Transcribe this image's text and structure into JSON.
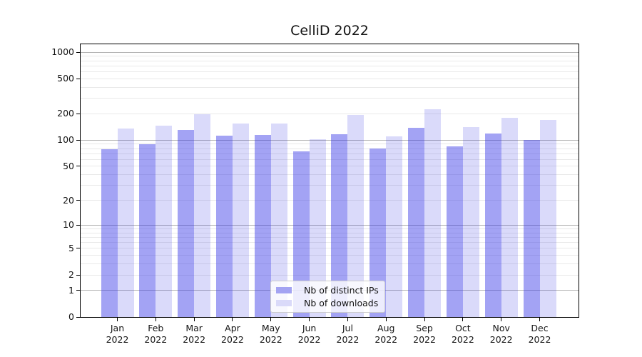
{
  "chart_data": {
    "type": "bar",
    "title": "CelliD 2022",
    "categories": [
      "Jan 2022",
      "Feb 2022",
      "Mar 2022",
      "Apr 2022",
      "May 2022",
      "Jun 2022",
      "Jul 2022",
      "Aug 2022",
      "Sep 2022",
      "Oct 2022",
      "Nov 2022",
      "Dec 2022"
    ],
    "series": [
      {
        "name": "Nb of distinct IPs",
        "color": "rgba(50,50,230,0.45)",
        "legend_color": "#a3a3f2",
        "values": [
          78,
          90,
          130,
          112,
          114,
          74,
          116,
          80,
          138,
          84,
          119,
          101
        ]
      },
      {
        "name": "Nb of downloads",
        "color": "rgba(50,50,230,0.18)",
        "legend_color": "#dadaf9",
        "values": [
          136,
          146,
          199,
          156,
          154,
          102,
          194,
          110,
          226,
          141,
          180,
          171
        ]
      }
    ],
    "yscale": "log1p",
    "ylim": [
      0,
      1230
    ],
    "yticks": [
      0,
      1,
      2,
      5,
      10,
      20,
      50,
      100,
      200,
      500,
      1000
    ],
    "minor_yticks": [
      3,
      4,
      6,
      7,
      8,
      9,
      30,
      40,
      60,
      70,
      80,
      90,
      300,
      400,
      600,
      700,
      800,
      900
    ],
    "major_gridlines": [
      1,
      10,
      100,
      1000
    ],
    "grid": true,
    "legend_position": "lower center",
    "colors": {
      "grid_major": "#b4b4b4",
      "grid_minor": "#e9e9e9",
      "axis": "#000000",
      "text": "#141414",
      "background": "#ffffff"
    }
  }
}
